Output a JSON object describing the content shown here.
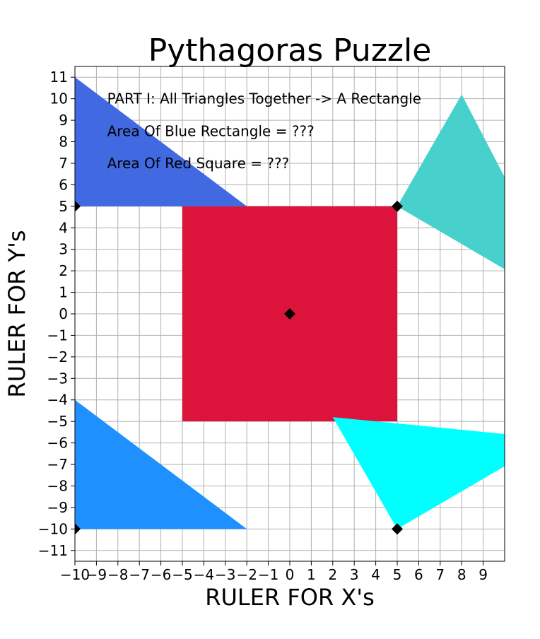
{
  "chart_data": {
    "type": "area",
    "title": "Pythagoras Puzzle",
    "xlabel": "RULER FOR X's",
    "ylabel": "RULER FOR Y's",
    "xlim": [
      -10,
      10
    ],
    "ylim": [
      -11.5,
      11.5
    ],
    "grid": true,
    "x_ticks": [
      -10,
      -9,
      -8,
      -7,
      -6,
      -5,
      -4,
      -3,
      -2,
      -1,
      0,
      1,
      2,
      3,
      4,
      5,
      6,
      7,
      8,
      9
    ],
    "y_ticks": [
      -11,
      -10,
      -9,
      -8,
      -7,
      -6,
      -5,
      -4,
      -3,
      -2,
      -1,
      0,
      1,
      2,
      3,
      4,
      5,
      6,
      7,
      8,
      9,
      10,
      11
    ],
    "annotations": [
      {
        "text": "PART I: All Triangles Together -> A Rectangle",
        "x": -8.5,
        "y": 10
      },
      {
        "text": "Area Of Blue Rectangle = ???",
        "x": -8.5,
        "y": 8.5
      },
      {
        "text": "Area Of Red Square = ???",
        "x": -8.5,
        "y": 7
      }
    ],
    "shapes": [
      {
        "name": "red-square",
        "color": "#dc143c",
        "points": [
          [
            -5,
            -5
          ],
          [
            5,
            -5
          ],
          [
            5,
            5
          ],
          [
            -5,
            5
          ]
        ]
      },
      {
        "name": "royal-blue-triangle",
        "color": "#4169e1",
        "points": [
          [
            -10,
            5
          ],
          [
            -10,
            11
          ],
          [
            -2,
            5
          ]
        ]
      },
      {
        "name": "dodger-blue-triangle",
        "color": "#1e90ff",
        "points": [
          [
            -10,
            -10
          ],
          [
            -10,
            -4
          ],
          [
            -2,
            -10
          ]
        ]
      },
      {
        "name": "medium-turquoise-triangle",
        "color": "#48d1cc",
        "points": [
          [
            5,
            5
          ],
          [
            8,
            10.2
          ],
          [
            13.2,
            0.2
          ]
        ]
      },
      {
        "name": "cyan-triangle",
        "color": "#00ffff",
        "points": [
          [
            5,
            -10
          ],
          [
            2,
            -4.8
          ],
          [
            12.2,
            -5.8
          ]
        ]
      }
    ],
    "markers": [
      {
        "x": 0,
        "y": 0
      },
      {
        "x": 5,
        "y": 5
      },
      {
        "x": -10,
        "y": 5
      },
      {
        "x": -10,
        "y": -10
      },
      {
        "x": 5,
        "y": -10
      }
    ]
  }
}
